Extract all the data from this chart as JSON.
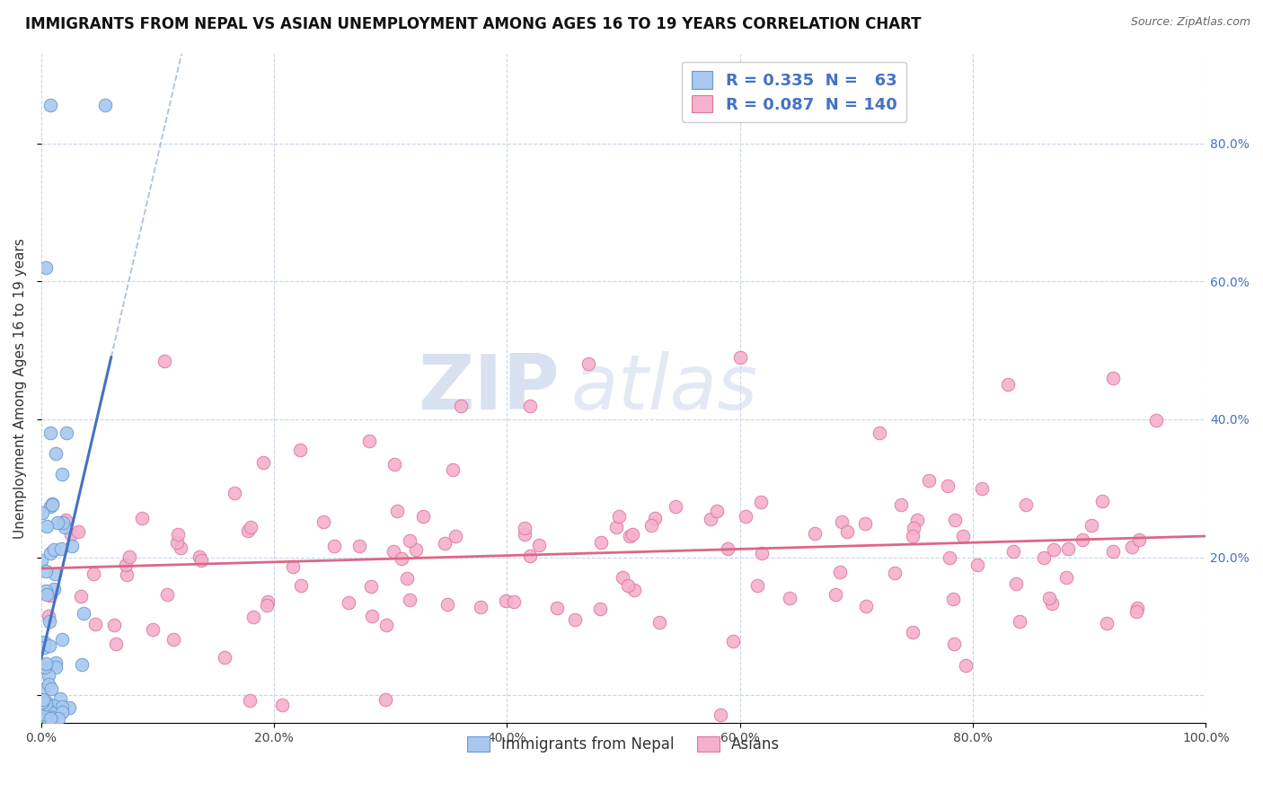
{
  "title": "IMMIGRANTS FROM NEPAL VS ASIAN UNEMPLOYMENT AMONG AGES 16 TO 19 YEARS CORRELATION CHART",
  "source": "Source: ZipAtlas.com",
  "ylabel": "Unemployment Among Ages 16 to 19 years",
  "xlim": [
    0.0,
    1.0
  ],
  "ylim": [
    -0.04,
    0.93
  ],
  "x_ticks": [
    0.0,
    0.2,
    0.4,
    0.6,
    0.8,
    1.0
  ],
  "x_tick_labels": [
    "0.0%",
    "20.0%",
    "40.0%",
    "60.0%",
    "80.0%",
    "100.0%"
  ],
  "y_ticks": [
    0.0,
    0.2,
    0.4,
    0.6,
    0.8
  ],
  "y_tick_labels": [
    "",
    "",
    "",
    "",
    ""
  ],
  "right_y_ticks": [
    0.2,
    0.4,
    0.6,
    0.8
  ],
  "right_y_tick_labels": [
    "20.0%",
    "40.0%",
    "60.0%",
    "80.0%"
  ],
  "series1_color": "#a8c8f0",
  "series1_edge": "#6699cc",
  "series1_line": "#4472c4",
  "series2_color": "#f4b0cc",
  "series2_edge": "#dd7799",
  "series2_line": "#dd6688",
  "watermark_zip": "ZIP",
  "watermark_atlas": "atlas",
  "background_color": "#ffffff",
  "grid_color": "#c8d4e8",
  "title_fontsize": 12,
  "axis_label_fontsize": 11,
  "tick_fontsize": 10,
  "R1": 0.335,
  "N1": 63,
  "R2": 0.087,
  "N2": 140,
  "legend1_label": "R = 0.335  N =   63",
  "legend2_label": "R = 0.087  N = 140"
}
